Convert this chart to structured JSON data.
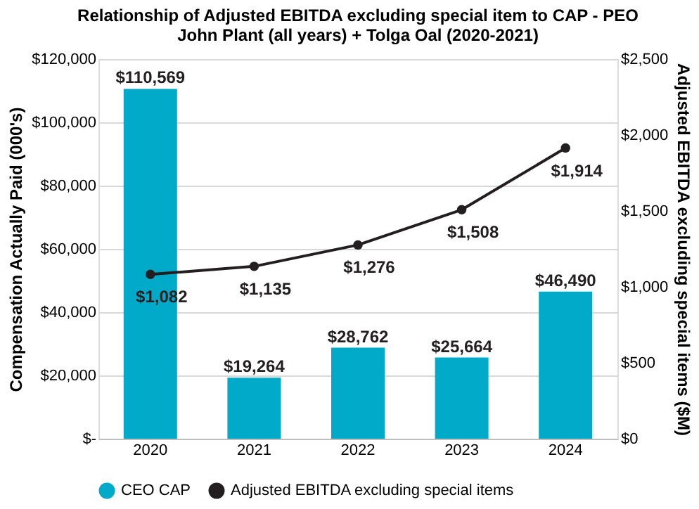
{
  "chart_data": {
    "type": "bar",
    "title": [
      "Relationship of Adjusted EBITDA excluding special item to CAP - PEO",
      "John Plant (all years) + Tolga Oal (2020-2021)"
    ],
    "categories": [
      "2020",
      "2021",
      "2022",
      "2023",
      "2024"
    ],
    "series": [
      {
        "name": "CEO CAP",
        "color": "#00aac8",
        "values": [
          110569,
          19264,
          28762,
          25664,
          46490
        ],
        "value_labels": [
          "$110,569",
          "$19,264",
          "$28,762",
          "$25,664",
          "$46,490"
        ]
      },
      {
        "name": "Adjusted EBITDA excluding special items",
        "type": "line",
        "axis": "y2",
        "color": "#231f20",
        "marker": "circle",
        "line_style": "solid",
        "values": [
          1082,
          1135,
          1276,
          1508,
          1914
        ],
        "value_labels": [
          "$1,082",
          "$1,135",
          "$1,276",
          "$1,508",
          "$1,914"
        ]
      }
    ],
    "ylabel": "Compensation Actually Paid (000's)",
    "y2label": "Adjusted EBITDA excluding special items ($M)",
    "ylim": [
      0,
      120000
    ],
    "yticks": [
      {
        "value": 0,
        "label": "$-"
      },
      {
        "value": 20000,
        "label": "$20,000"
      },
      {
        "value": 40000,
        "label": "$40,000"
      },
      {
        "value": 60000,
        "label": "$60,000"
      },
      {
        "value": 80000,
        "label": "$80,000"
      },
      {
        "value": 100000,
        "label": "$100,000"
      },
      {
        "value": 120000,
        "label": "$120,000"
      }
    ],
    "y2lim": [
      0,
      2500
    ],
    "y2ticks": [
      {
        "value": 0,
        "label": "$0"
      },
      {
        "value": 500,
        "label": "$500"
      },
      {
        "value": 1000,
        "label": "$1,000"
      },
      {
        "value": 1500,
        "label": "$1,500"
      },
      {
        "value": 2000,
        "label": "$2,000"
      },
      {
        "value": 2500,
        "label": "$2,500"
      }
    ],
    "grid": "y",
    "legend": "bottom"
  }
}
